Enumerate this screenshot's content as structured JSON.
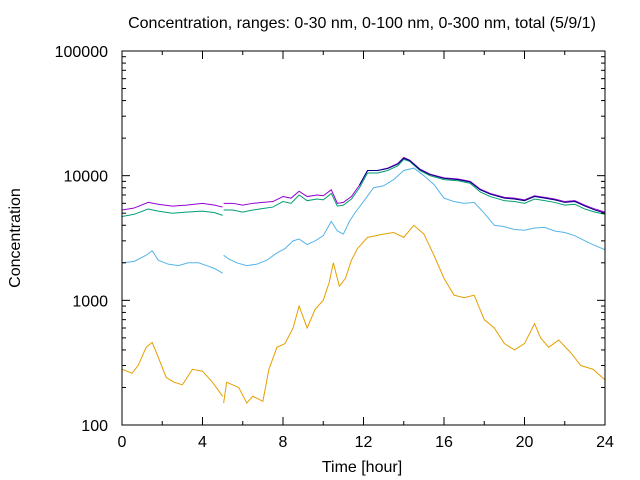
{
  "chart_data": {
    "type": "line",
    "title": "Concentration, ranges: 0-30 nm, 0-100 nm, 0-300 nm, total (5/9/1)",
    "xlabel": "Time [hour]",
    "ylabel": "Concentration",
    "xlim": [
      0,
      24
    ],
    "ylim": [
      100,
      100000
    ],
    "yscale": "log",
    "grid": false,
    "x_ticks": [
      0,
      4,
      8,
      12,
      16,
      20,
      24
    ],
    "x_tick_labels": [
      "0",
      "4",
      "8",
      "12",
      "16",
      "20",
      "24"
    ],
    "y_ticks": [
      100,
      1000,
      10000,
      100000
    ],
    "y_tick_labels": [
      "100",
      "1000",
      "10000",
      "100000"
    ],
    "series": [
      {
        "color": "#e69f00",
        "points": [
          [
            0,
            280
          ],
          [
            0.5,
            260
          ],
          [
            0.8,
            300
          ],
          [
            1.2,
            420
          ],
          [
            1.5,
            460
          ],
          [
            1.8,
            350
          ],
          [
            2.2,
            240
          ],
          [
            2.6,
            220
          ],
          [
            3,
            210
          ],
          [
            3.5,
            280
          ],
          [
            4,
            270
          ],
          [
            4.5,
            220
          ],
          [
            5,
            170
          ],
          [
            5.05,
            150
          ],
          [
            5.2,
            220
          ],
          [
            5.5,
            210
          ],
          [
            5.8,
            200
          ],
          [
            6.2,
            150
          ],
          [
            6.5,
            170
          ],
          [
            7,
            155
          ],
          [
            7.3,
            280
          ],
          [
            7.7,
            420
          ],
          [
            8.1,
            450
          ],
          [
            8.5,
            600
          ],
          [
            8.8,
            900
          ],
          [
            9.2,
            600
          ],
          [
            9.6,
            850
          ],
          [
            10,
            1000
          ],
          [
            10.3,
            1400
          ],
          [
            10.5,
            2000
          ],
          [
            10.8,
            1300
          ],
          [
            11.1,
            1500
          ],
          [
            11.4,
            2100
          ],
          [
            11.7,
            2600
          ],
          [
            12.2,
            3200
          ],
          [
            13,
            3400
          ],
          [
            13.5,
            3500
          ],
          [
            14,
            3200
          ],
          [
            14.5,
            4000
          ],
          [
            15,
            3400
          ],
          [
            15.5,
            2300
          ],
          [
            16,
            1500
          ],
          [
            16.5,
            1100
          ],
          [
            17,
            1050
          ],
          [
            17.5,
            1100
          ],
          [
            18,
            700
          ],
          [
            18.5,
            600
          ],
          [
            19,
            450
          ],
          [
            19.5,
            400
          ],
          [
            20,
            450
          ],
          [
            20.5,
            650
          ],
          [
            20.8,
            500
          ],
          [
            21.2,
            420
          ],
          [
            21.7,
            480
          ],
          [
            22.3,
            380
          ],
          [
            22.8,
            300
          ],
          [
            23.4,
            280
          ],
          [
            24,
            230
          ]
        ]
      },
      {
        "color": "#56b4e9",
        "points": [
          [
            0,
            2000
          ],
          [
            0.6,
            2050
          ],
          [
            1.2,
            2300
          ],
          [
            1.5,
            2500
          ],
          [
            1.8,
            2100
          ],
          [
            2.3,
            1950
          ],
          [
            2.8,
            1900
          ],
          [
            3.3,
            2000
          ],
          [
            3.8,
            2000
          ],
          [
            4.2,
            1900
          ],
          [
            4.6,
            1800
          ],
          [
            5,
            1650
          ],
          [
            5.05,
            2300
          ],
          [
            5.3,
            2150
          ],
          [
            5.7,
            2000
          ],
          [
            6.2,
            1900
          ],
          [
            6.7,
            1950
          ],
          [
            7.2,
            2100
          ],
          [
            7.7,
            2400
          ],
          [
            8.1,
            2600
          ],
          [
            8.5,
            3000
          ],
          [
            8.8,
            3100
          ],
          [
            9.2,
            2800
          ],
          [
            9.6,
            3000
          ],
          [
            10,
            3300
          ],
          [
            10.4,
            4300
          ],
          [
            10.7,
            3600
          ],
          [
            11,
            3400
          ],
          [
            11.3,
            4300
          ],
          [
            11.6,
            5100
          ],
          [
            12,
            6200
          ],
          [
            12.5,
            8000
          ],
          [
            13,
            8300
          ],
          [
            13.5,
            9300
          ],
          [
            14,
            11000
          ],
          [
            14.5,
            11500
          ],
          [
            15,
            10000
          ],
          [
            15.5,
            8500
          ],
          [
            16,
            6600
          ],
          [
            16.5,
            6200
          ],
          [
            17,
            6000
          ],
          [
            17.5,
            6100
          ],
          [
            18,
            5000
          ],
          [
            18.5,
            4000
          ],
          [
            19,
            3900
          ],
          [
            19.5,
            3700
          ],
          [
            20,
            3650
          ],
          [
            20.5,
            3800
          ],
          [
            21,
            3850
          ],
          [
            21.5,
            3600
          ],
          [
            22,
            3500
          ],
          [
            22.5,
            3300
          ],
          [
            23,
            3000
          ],
          [
            23.5,
            2750
          ],
          [
            24,
            2550
          ]
        ]
      },
      {
        "color": "#009e73",
        "points": [
          [
            0,
            4700
          ],
          [
            0.6,
            4900
          ],
          [
            1.3,
            5400
          ],
          [
            1.8,
            5200
          ],
          [
            2.5,
            5000
          ],
          [
            3.2,
            5100
          ],
          [
            4,
            5200
          ],
          [
            4.6,
            5050
          ],
          [
            5,
            4800
          ],
          [
            5.05,
            5300
          ],
          [
            5.5,
            5300
          ],
          [
            6,
            5100
          ],
          [
            6.5,
            5300
          ],
          [
            7,
            5450
          ],
          [
            7.5,
            5600
          ],
          [
            8,
            6200
          ],
          [
            8.4,
            6000
          ],
          [
            8.8,
            7000
          ],
          [
            9.2,
            6300
          ],
          [
            9.7,
            6500
          ],
          [
            10,
            6400
          ],
          [
            10.4,
            7200
          ],
          [
            10.7,
            5700
          ],
          [
            11,
            5800
          ],
          [
            11.4,
            6500
          ],
          [
            11.8,
            8000
          ],
          [
            12.2,
            10500
          ],
          [
            12.7,
            10500
          ],
          [
            13.2,
            11000
          ],
          [
            13.7,
            12000
          ],
          [
            14,
            13500
          ],
          [
            14.3,
            13000
          ],
          [
            14.8,
            11000
          ],
          [
            15.3,
            10000
          ],
          [
            16,
            9300
          ],
          [
            16.7,
            9100
          ],
          [
            17.3,
            8700
          ],
          [
            17.8,
            7400
          ],
          [
            18.3,
            6800
          ],
          [
            19,
            6300
          ],
          [
            19.5,
            6200
          ],
          [
            20,
            6000
          ],
          [
            20.5,
            6500
          ],
          [
            21,
            6300
          ],
          [
            21.5,
            6100
          ],
          [
            22,
            5800
          ],
          [
            22.5,
            5900
          ],
          [
            23,
            5400
          ],
          [
            23.5,
            5100
          ],
          [
            24,
            4900
          ]
        ]
      },
      {
        "color": "#9400d3",
        "points": [
          [
            0,
            5300
          ],
          [
            0.6,
            5500
          ],
          [
            1.3,
            6100
          ],
          [
            1.8,
            5900
          ],
          [
            2.5,
            5700
          ],
          [
            3.2,
            5800
          ],
          [
            4,
            6000
          ],
          [
            4.6,
            5800
          ],
          [
            5,
            5600
          ],
          [
            5.05,
            6000
          ],
          [
            5.5,
            6000
          ],
          [
            6,
            5800
          ],
          [
            6.5,
            6000
          ],
          [
            7,
            6100
          ],
          [
            7.5,
            6200
          ],
          [
            8,
            6800
          ],
          [
            8.4,
            6600
          ],
          [
            8.8,
            7500
          ],
          [
            9.2,
            6800
          ],
          [
            9.7,
            7000
          ],
          [
            10,
            6900
          ],
          [
            10.4,
            7700
          ],
          [
            10.7,
            6000
          ],
          [
            11,
            6100
          ],
          [
            11.4,
            6800
          ],
          [
            11.8,
            8400
          ],
          [
            12.2,
            11000
          ],
          [
            12.7,
            11000
          ],
          [
            13.2,
            11500
          ],
          [
            13.7,
            12500
          ],
          [
            14,
            14000
          ],
          [
            14.3,
            13300
          ],
          [
            14.8,
            11300
          ],
          [
            15.3,
            10300
          ],
          [
            16,
            9600
          ],
          [
            16.7,
            9400
          ],
          [
            17.3,
            9000
          ],
          [
            17.8,
            7800
          ],
          [
            18.3,
            7200
          ],
          [
            19,
            6700
          ],
          [
            19.5,
            6600
          ],
          [
            20,
            6400
          ],
          [
            20.5,
            6900
          ],
          [
            21,
            6700
          ],
          [
            21.5,
            6500
          ],
          [
            22,
            6200
          ],
          [
            22.5,
            6300
          ],
          [
            23,
            5800
          ],
          [
            23.5,
            5400
          ],
          [
            24,
            5100
          ]
        ]
      },
      {
        "color": "#000080",
        "points": [
          [
            11.8,
            8400
          ],
          [
            12.2,
            11000
          ],
          [
            12.7,
            11000
          ],
          [
            13.2,
            11400
          ],
          [
            13.7,
            12400
          ],
          [
            14,
            13800
          ],
          [
            14.3,
            13200
          ],
          [
            14.8,
            11200
          ],
          [
            15.3,
            10200
          ],
          [
            16,
            9500
          ],
          [
            16.7,
            9300
          ],
          [
            17.3,
            8900
          ],
          [
            17.8,
            7700
          ],
          [
            18.3,
            7100
          ],
          [
            19,
            6600
          ],
          [
            19.5,
            6500
          ],
          [
            20,
            6300
          ],
          [
            20.5,
            6800
          ],
          [
            21,
            6600
          ],
          [
            21.5,
            6400
          ],
          [
            22,
            6100
          ],
          [
            22.5,
            6200
          ],
          [
            23,
            5700
          ],
          [
            23.5,
            5300
          ],
          [
            24,
            5000
          ]
        ]
      }
    ]
  }
}
